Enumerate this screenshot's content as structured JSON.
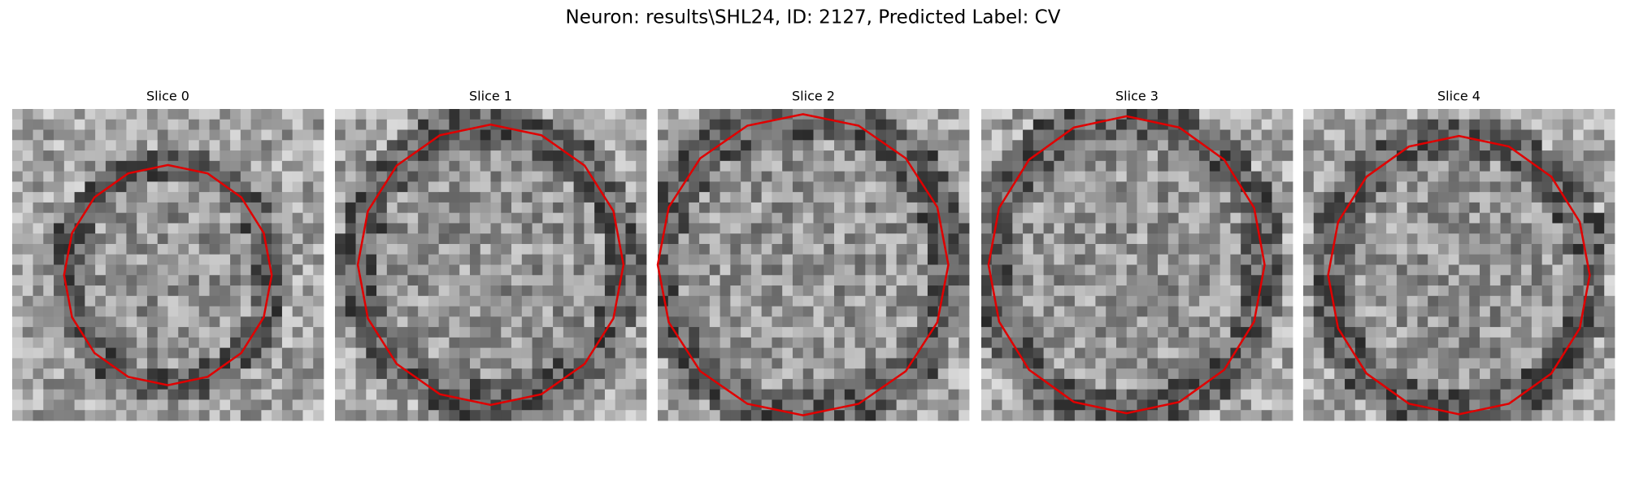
{
  "title": "Neuron: results\\SHL24, ID: 2127, Predicted Label: CV",
  "panels": [
    {
      "title": "Slice 0"
    },
    {
      "title": "Slice 1"
    },
    {
      "title": "Slice 2"
    },
    {
      "title": "Slice 3"
    },
    {
      "title": "Slice 4"
    }
  ]
}
